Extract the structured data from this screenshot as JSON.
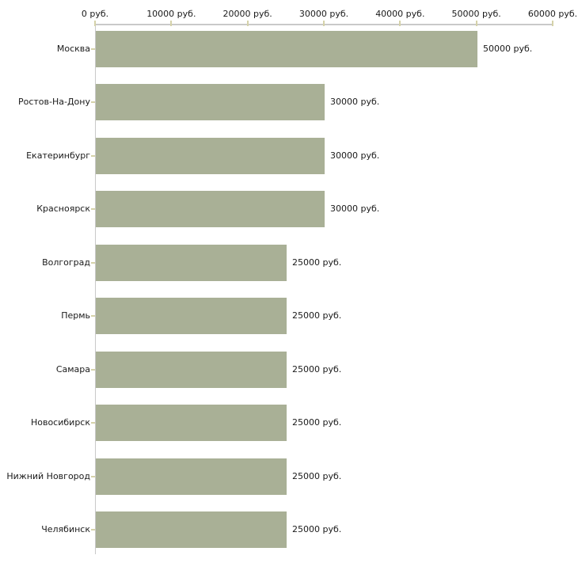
{
  "chart_data": {
    "type": "bar",
    "orientation": "horizontal",
    "title": "",
    "categories": [
      "Москва",
      "Ростов-На-Дону",
      "Екатеринбург",
      "Красноярск",
      "Волгоград",
      "Пермь",
      "Самара",
      "Новосибирск",
      "Нижний Новгород",
      "Челябинск"
    ],
    "values": [
      50000,
      30000,
      30000,
      30000,
      25000,
      25000,
      25000,
      25000,
      25000,
      25000
    ],
    "value_labels": [
      "50000 руб.",
      "30000 руб.",
      "30000 руб.",
      "30000 руб.",
      "25000 руб.",
      "25000 руб.",
      "25000 руб.",
      "25000 руб.",
      "25000 руб.",
      "25000 руб."
    ],
    "xlabel": "",
    "ylabel": "",
    "xlim": [
      0,
      60000
    ],
    "x_axis": {
      "position": "top",
      "ticks": [
        0,
        10000,
        20000,
        30000,
        40000,
        50000,
        60000
      ],
      "tick_labels": [
        "0 руб.",
        "10000 руб.",
        "20000 руб.",
        "30000 руб.",
        "40000 руб.",
        "50000 руб.",
        "60000 руб."
      ]
    },
    "grid": false,
    "legend": false,
    "colors": {
      "bar": "#a9b096",
      "axis_line": "#c9c9c9",
      "tick_mark": "#d5d2a9",
      "text": "#1a1a1a",
      "background": "#ffffff"
    }
  }
}
